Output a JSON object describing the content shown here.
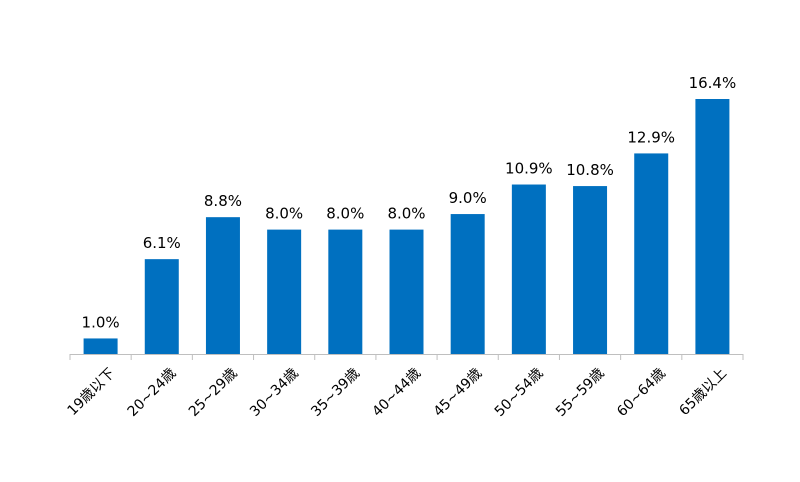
{
  "chart_data": {
    "type": "bar",
    "title": "",
    "xlabel": "",
    "ylabel": "",
    "unit": "%",
    "ylim": [
      0,
      16.4
    ],
    "grid": false,
    "legend": "none",
    "bar_color": "#0070C0",
    "axis_color": "#BFBFBF",
    "categories": [
      "19歳以下",
      "20~24歳",
      "25~29歳",
      "30~34歳",
      "35~39歳",
      "40~44歳",
      "45~49歳",
      "50~54歳",
      "55~59歳",
      "60~64歳",
      "65歳以上"
    ],
    "values": [
      1.0,
      6.1,
      8.8,
      8.0,
      8.0,
      8.0,
      9.0,
      10.9,
      10.8,
      12.9,
      16.4
    ],
    "data_labels": [
      "1.0%",
      "6.1%",
      "8.8%",
      "8.0%",
      "8.0%",
      "8.0%",
      "9.0%",
      "10.9%",
      "10.8%",
      "12.9%",
      "16.4%"
    ]
  }
}
